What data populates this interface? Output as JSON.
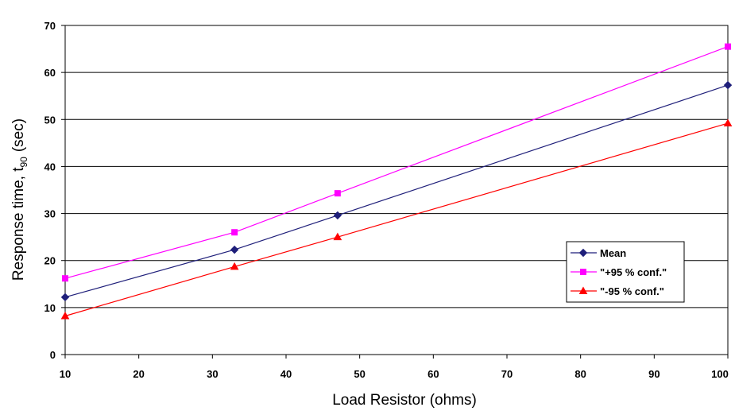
{
  "chart_data": {
    "type": "line",
    "xlabel": "Load Resistor (ohms)",
    "ylabel": {
      "main": "Response time, t",
      "subscript": "90",
      "unit": "(sec)"
    },
    "xlim": [
      10,
      100
    ],
    "ylim": [
      0,
      70
    ],
    "xticks": [
      10,
      20,
      30,
      40,
      50,
      60,
      70,
      80,
      90,
      100
    ],
    "yticks": [
      0,
      10,
      20,
      30,
      40,
      50,
      60,
      70
    ],
    "xtick_labels": [
      "10",
      "20",
      "30",
      "40",
      "50",
      "60",
      "70",
      "80",
      "90",
      "100"
    ],
    "ytick_labels": [
      "0",
      "10",
      "20",
      "30",
      "40",
      "50",
      "60",
      "70"
    ],
    "grid": "horizontal",
    "legend_position": "right",
    "series": [
      {
        "name": "Mean",
        "color": "#1f1f7a",
        "marker": "diamond",
        "x": [
          10,
          33,
          47,
          100
        ],
        "values": [
          12.2,
          22.3,
          29.6,
          57.3
        ]
      },
      {
        "name": "\"+95 % conf.\"",
        "color": "#ff00ff",
        "marker": "square",
        "x": [
          10,
          33,
          47,
          100
        ],
        "values": [
          16.2,
          26.0,
          34.3,
          65.5
        ]
      },
      {
        "name": "\"-95 % conf.\"",
        "color": "#ff0000",
        "marker": "triangle",
        "x": [
          10,
          33,
          47,
          100
        ],
        "values": [
          8.2,
          18.7,
          25.0,
          49.2
        ]
      }
    ]
  }
}
